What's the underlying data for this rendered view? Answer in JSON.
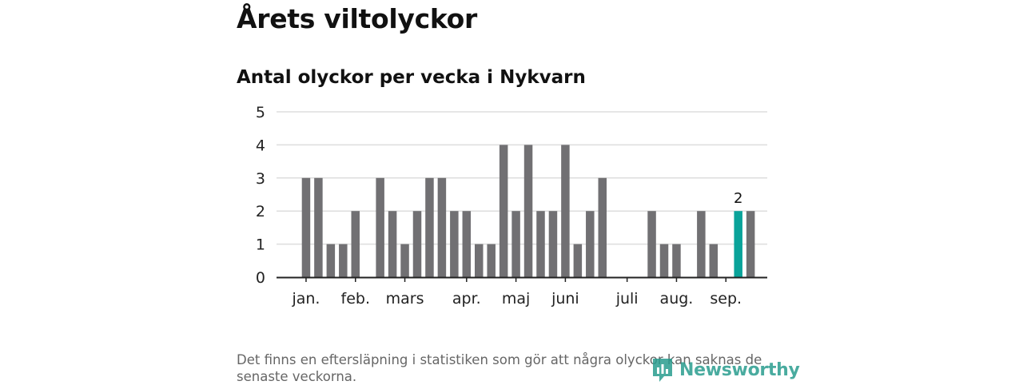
{
  "header": {
    "title": "Årets viltolyckor",
    "subtitle": "Antal olyckor per vecka i Nykvarn"
  },
  "footer": {
    "note": "Det finns en eftersläpning i statistiken som gör att några olyckor kan saknas de senaste veckorna.",
    "logo_text": "Newsworthy"
  },
  "colors": {
    "bar": "#717073",
    "highlight": "#0aa39a",
    "grid": "#dddddd",
    "axis": "#222222",
    "brand": "#2a9d8f"
  },
  "chart_data": {
    "type": "bar",
    "title": "Antal olyckor per vecka i Nykvarn",
    "xlabel": "",
    "ylabel": "",
    "ylim": [
      0,
      5
    ],
    "yticks": [
      0,
      1,
      2,
      3,
      4,
      5
    ],
    "grid": true,
    "weeks": [
      1,
      2,
      3,
      4,
      5,
      6,
      7,
      8,
      9,
      10,
      11,
      12,
      13,
      14,
      15,
      16,
      17,
      18,
      19,
      20,
      21,
      22,
      23,
      24,
      25,
      26,
      27,
      28,
      29,
      30,
      31,
      32,
      33,
      34,
      35,
      36,
      37,
      38,
      39,
      40
    ],
    "values": [
      0,
      3,
      3,
      1,
      1,
      2,
      0,
      3,
      2,
      1,
      2,
      3,
      3,
      2,
      2,
      1,
      1,
      4,
      2,
      4,
      2,
      2,
      4,
      1,
      2,
      3,
      0,
      0,
      0,
      2,
      1,
      1,
      0,
      2,
      1,
      0,
      2,
      2,
      0,
      0
    ],
    "highlight_index": 36,
    "highlight_label": "2",
    "month_labels": [
      {
        "label": "jan.",
        "week": 1
      },
      {
        "label": "feb.",
        "week": 5
      },
      {
        "label": "mars",
        "week": 9
      },
      {
        "label": "apr.",
        "week": 14
      },
      {
        "label": "maj",
        "week": 18
      },
      {
        "label": "juni",
        "week": 22
      },
      {
        "label": "juli",
        "week": 27
      },
      {
        "label": "aug.",
        "week": 31
      },
      {
        "label": "sep.",
        "week": 35
      }
    ]
  }
}
